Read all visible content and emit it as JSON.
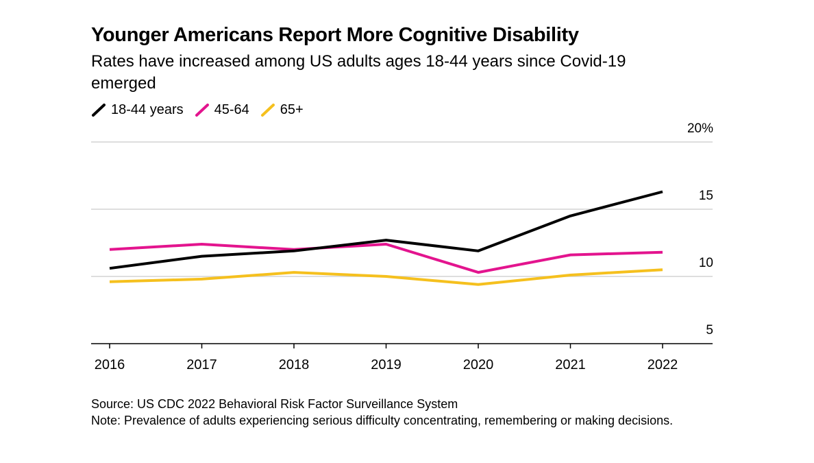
{
  "header": {
    "title": "Younger Americans Report More Cognitive Disability",
    "subtitle": "Rates have increased among US adults ages 18-44 years since Covid-19 emerged"
  },
  "footer": {
    "source": "Source: US CDC 2022 Behavioral Risk Factor Surveillance System",
    "note": "Note: Prevalence of adults experiencing serious difficulty concentrating, remembering or making decisions."
  },
  "chart_data": {
    "type": "line",
    "title": "Younger Americans Report More Cognitive Disability",
    "subtitle": "Rates have increased among US adults ages 18-44 years since Covid-19 emerged",
    "xlabel": "",
    "ylabel": "",
    "x": [
      "2016",
      "2017",
      "2018",
      "2019",
      "2020",
      "2021",
      "2022"
    ],
    "ylim": [
      5,
      20
    ],
    "y_ticks": [
      5,
      10,
      15,
      20
    ],
    "y_tick_labels": [
      "5",
      "10",
      "15",
      "20%"
    ],
    "y_axis_side": "right",
    "grid": true,
    "legend_position": "top-left",
    "series": [
      {
        "name": "18-44 years",
        "color": "#000000",
        "values": [
          10.6,
          11.5,
          11.9,
          12.7,
          11.9,
          14.5,
          16.3
        ]
      },
      {
        "name": "45-64",
        "color": "#e3148e",
        "values": [
          12.0,
          12.4,
          12.0,
          12.4,
          10.3,
          11.6,
          11.8
        ]
      },
      {
        "name": "65+",
        "color": "#f5c01e",
        "values": [
          9.6,
          9.8,
          10.3,
          10.0,
          9.4,
          10.1,
          10.5
        ]
      }
    ]
  }
}
